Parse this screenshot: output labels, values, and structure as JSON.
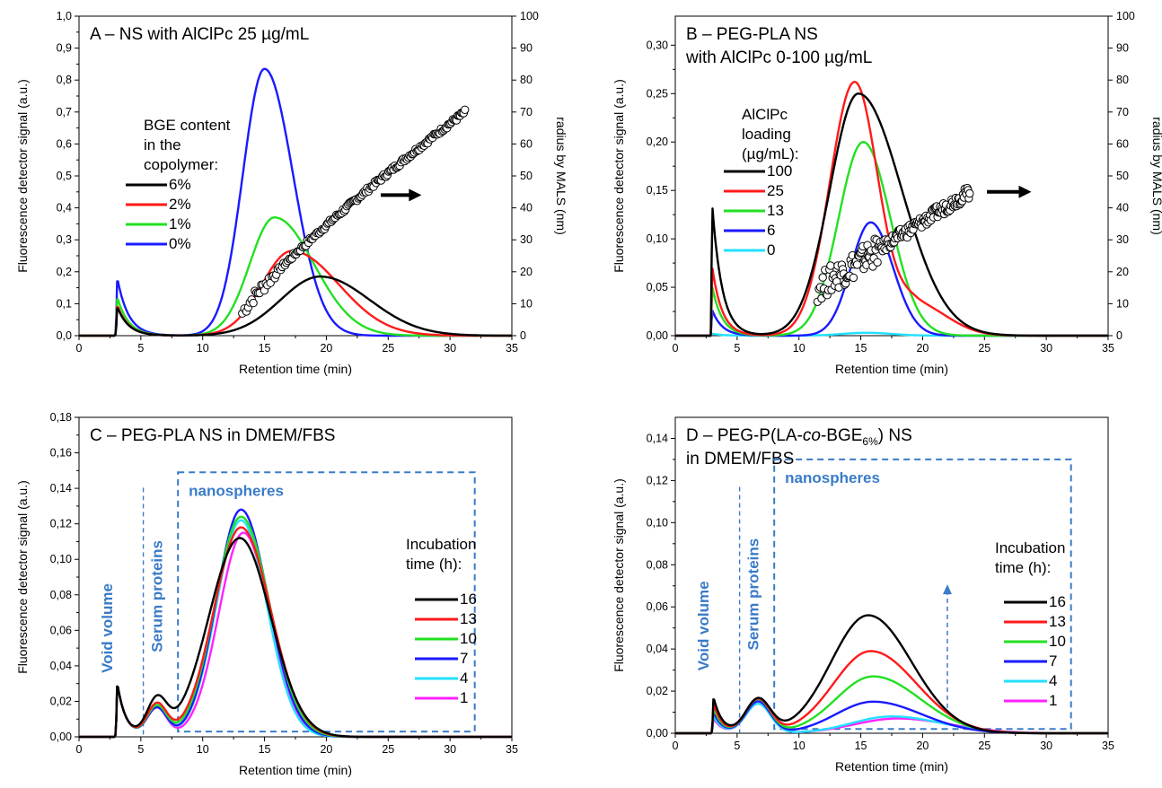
{
  "chart_data": [
    {
      "panel": "A",
      "type": "line",
      "title": "A – NS with AlClPc 25 µg/mL",
      "xlabel": "Retention time (min)",
      "ylabel": "Fluorescence detector signal (a.u.)",
      "y2label": "radius by MALS (nm)",
      "xlim": [
        0,
        35
      ],
      "ylim": [
        0,
        1.0
      ],
      "y2lim": [
        0,
        100
      ],
      "xticks": [
        "0",
        "5",
        "10",
        "15",
        "20",
        "25",
        "30",
        "35"
      ],
      "yticks": [
        "0,0",
        "0,1",
        "0,2",
        "0,3",
        "0,4",
        "0,5",
        "0,6",
        "0,7",
        "0,8",
        "0,9",
        "1,0"
      ],
      "y2ticks": [
        "0",
        "10",
        "20",
        "30",
        "40",
        "50",
        "60",
        "70",
        "80",
        "90",
        "100"
      ],
      "legend_title": [
        "BGE content",
        "in the",
        "copolymer:"
      ],
      "series": [
        {
          "name": "6%",
          "color": "#000000",
          "void": {
            "mu": 3.1,
            "h": 0.09,
            "tau": 0.9
          },
          "peaks": [
            {
              "mu": 19.5,
              "h": 0.185,
              "sl": 3.2,
              "sr": 4.0
            }
          ]
        },
        {
          "name": "2%",
          "color": "#ff1a1a",
          "void": {
            "mu": 3.1,
            "h": 0.095,
            "tau": 0.9
          },
          "peaks": [
            {
              "mu": 17.2,
              "h": 0.265,
              "sl": 2.4,
              "sr": 3.8
            }
          ]
        },
        {
          "name": "1%",
          "color": "#22e022",
          "void": {
            "mu": 3.1,
            "h": 0.12,
            "tau": 0.9
          },
          "peaks": [
            {
              "mu": 15.8,
              "h": 0.37,
              "sl": 2.0,
              "sr": 3.2
            }
          ]
        },
        {
          "name": "0%",
          "color": "#1a1aff",
          "void": {
            "mu": 3.1,
            "h": 0.18,
            "tau": 0.9
          },
          "peaks": [
            {
              "mu": 15.0,
              "h": 0.835,
              "sl": 1.75,
              "sr": 2.3
            }
          ]
        }
      ],
      "mals": {
        "axis": "right",
        "x_start": 13.2,
        "x_end": 31.2,
        "r_start": 7,
        "r_end": 70,
        "note_points": [
          [
            14,
            12
          ],
          [
            17,
            20
          ],
          [
            20,
            30
          ],
          [
            25,
            49
          ],
          [
            29,
            63
          ],
          [
            31,
            70
          ]
        ]
      }
    },
    {
      "panel": "B",
      "type": "line",
      "title": [
        "B – PEG-PLA NS",
        "with AlClPc 0-100 µg/mL"
      ],
      "xlabel": "Retention time (min)",
      "ylabel": "Fluorescence detector signal (a.u.)",
      "y2label": "radius by MALS (nm)",
      "xlim": [
        0,
        35
      ],
      "ylim": [
        0,
        0.33
      ],
      "y2lim": [
        0,
        100
      ],
      "xticks": [
        "0",
        "5",
        "10",
        "15",
        "20",
        "25",
        "30",
        "35"
      ],
      "yticks": [
        "0,00",
        "0,05",
        "0,10",
        "0,15",
        "0,20",
        "0,25",
        "0,30"
      ],
      "y2ticks": [
        "0",
        "10",
        "20",
        "30",
        "40",
        "50",
        "60",
        "70",
        "80",
        "90",
        "100"
      ],
      "legend_title": [
        "AlClPc",
        "loading",
        "(µg/mL):"
      ],
      "series": [
        {
          "name": "100",
          "color": "#000000",
          "void": {
            "mu": 3.0,
            "h": 0.133,
            "tau": 0.8
          },
          "peaks": [
            {
              "mu": 14.8,
              "h": 0.25,
              "sl": 2.3,
              "sr": 3.5
            }
          ]
        },
        {
          "name": "25",
          "color": "#ff1a1a",
          "void": {
            "mu": 3.0,
            "h": 0.07,
            "tau": 0.8
          },
          "peaks": [
            {
              "mu": 14.5,
              "h": 0.262,
              "sl": 2.0,
              "sr": 1.9
            },
            {
              "mu": 19.5,
              "h": 0.032,
              "sl": 1.5,
              "sr": 2.5
            }
          ]
        },
        {
          "name": "13",
          "color": "#22e022",
          "void": {
            "mu": 3.0,
            "h": 0.05,
            "tau": 0.8
          },
          "peaks": [
            {
              "mu": 15.2,
              "h": 0.2,
              "sl": 2.0,
              "sr": 2.2
            }
          ]
        },
        {
          "name": "6",
          "color": "#1a1aff",
          "void": {
            "mu": 3.0,
            "h": 0.026,
            "tau": 0.8
          },
          "peaks": [
            {
              "mu": 15.8,
              "h": 0.117,
              "sl": 1.6,
              "sr": 1.8
            }
          ]
        },
        {
          "name": "0",
          "color": "#22e0ff",
          "void": {
            "mu": 3.0,
            "h": 0.002,
            "tau": 0.8
          },
          "peaks": [
            {
              "mu": 15.5,
              "h": 0.003,
              "sl": 2.0,
              "sr": 2.0
            }
          ]
        }
      ],
      "mals": {
        "axis": "right",
        "x_start": 11.5,
        "x_end": 23.8,
        "r_start": 15,
        "r_end": 45,
        "note_points": [
          [
            12,
            18
          ],
          [
            15,
            25
          ],
          [
            18,
            33
          ],
          [
            20,
            38
          ],
          [
            23,
            46
          ]
        ]
      }
    },
    {
      "panel": "C",
      "type": "line",
      "title": "C – PEG-PLA NS in DMEM/FBS",
      "xlabel": "Retention time (min)",
      "ylabel": "Fluorescence detector signal (a.u.)",
      "xlim": [
        0,
        35
      ],
      "ylim": [
        0,
        0.18
      ],
      "xticks": [
        "0",
        "5",
        "10",
        "15",
        "20",
        "25",
        "30",
        "35"
      ],
      "yticks": [
        "0,00",
        "0,02",
        "0,04",
        "0,06",
        "0,08",
        "0,10",
        "0,12",
        "0,14",
        "0,16",
        "0,18"
      ],
      "legend_title": [
        "Incubation",
        "time (h):"
      ],
      "regions": {
        "void": "Void volume",
        "serum": "Serum proteins",
        "nano": "nanospheres"
      },
      "series": [
        {
          "name": "16",
          "color": "#000000",
          "void": {
            "mu": 3.1,
            "h": 0.03,
            "tau": 0.7
          },
          "serum": {
            "mu": 6.3,
            "h": 0.02,
            "s": 0.8
          },
          "peaks": [
            {
              "mu": 13.0,
              "h": 0.112,
              "sl": 2.5,
              "sr": 2.5
            }
          ]
        },
        {
          "name": "13",
          "color": "#ff1a1a",
          "void": {
            "mu": 3.1,
            "h": 0.03,
            "tau": 0.7
          },
          "serum": {
            "mu": 6.3,
            "h": 0.018,
            "s": 0.8
          },
          "peaks": [
            {
              "mu": 13.1,
              "h": 0.118,
              "sl": 2.2,
              "sr": 2.4
            }
          ]
        },
        {
          "name": "10",
          "color": "#22e022",
          "void": {
            "mu": 3.1,
            "h": 0.03,
            "tau": 0.7
          },
          "serum": {
            "mu": 6.3,
            "h": 0.017,
            "s": 0.8
          },
          "peaks": [
            {
              "mu": 13.1,
              "h": 0.124,
              "sl": 2.1,
              "sr": 2.3
            }
          ]
        },
        {
          "name": "7",
          "color": "#1a1aff",
          "void": {
            "mu": 3.1,
            "h": 0.03,
            "tau": 0.7
          },
          "serum": {
            "mu": 6.3,
            "h": 0.016,
            "s": 0.8
          },
          "peaks": [
            {
              "mu": 13.1,
              "h": 0.128,
              "sl": 2.0,
              "sr": 2.2
            }
          ]
        },
        {
          "name": "4",
          "color": "#22e0ff",
          "void": {
            "mu": 3.1,
            "h": 0.03,
            "tau": 0.7
          },
          "serum": {
            "mu": 6.3,
            "h": 0.016,
            "s": 0.8
          },
          "peaks": [
            {
              "mu": 13.1,
              "h": 0.122,
              "sl": 2.0,
              "sr": 2.1
            }
          ]
        },
        {
          "name": "1",
          "color": "#ff22ff",
          "void": {
            "mu": 3.1,
            "h": 0.03,
            "tau": 0.7
          },
          "serum": {
            "mu": 6.3,
            "h": 0.016,
            "s": 0.8
          },
          "peaks": [
            {
              "mu": 13.3,
              "h": 0.115,
              "sl": 2.0,
              "sr": 2.1
            }
          ]
        }
      ]
    },
    {
      "panel": "D",
      "type": "line",
      "title_parts": {
        "pre": "D – PEG-P(LA-",
        "italic": "co",
        "mid": "-BGE",
        "sub": "6%",
        "post": ") NS"
      },
      "title_line2": "in DMEM/FBS",
      "xlabel": "Retention time (min)",
      "ylabel": "Fluorescence detector signal (a.u.)",
      "xlim": [
        0,
        35
      ],
      "ylim": [
        0,
        0.15
      ],
      "xticks": [
        "0",
        "5",
        "10",
        "15",
        "20",
        "25",
        "30",
        "35"
      ],
      "yticks": [
        "0,00",
        "0,02",
        "0,04",
        "0,06",
        "0,08",
        "0,10",
        "0,12",
        "0,14"
      ],
      "legend_title": [
        "Incubation",
        "time (h):"
      ],
      "regions": {
        "void": "Void volume",
        "serum": "Serum proteins",
        "nano": "nanospheres"
      },
      "series": [
        {
          "name": "16",
          "color": "#000000",
          "void": {
            "mu": 3.1,
            "h": 0.017,
            "tau": 0.7
          },
          "serum": {
            "mu": 6.7,
            "h": 0.016,
            "s": 1.0
          },
          "peaks": [
            {
              "mu": 15.6,
              "h": 0.056,
              "sl": 3.0,
              "sr": 3.5
            }
          ]
        },
        {
          "name": "13",
          "color": "#ff1a1a",
          "void": {
            "mu": 3.1,
            "h": 0.014,
            "tau": 0.7
          },
          "serum": {
            "mu": 6.7,
            "h": 0.016,
            "s": 1.0
          },
          "peaks": [
            {
              "mu": 15.8,
              "h": 0.039,
              "sl": 3.0,
              "sr": 3.7
            }
          ]
        },
        {
          "name": "10",
          "color": "#22e022",
          "void": {
            "mu": 3.1,
            "h": 0.012,
            "tau": 0.7
          },
          "serum": {
            "mu": 6.7,
            "h": 0.016,
            "s": 1.0
          },
          "peaks": [
            {
              "mu": 16.0,
              "h": 0.027,
              "sl": 3.0,
              "sr": 3.8
            }
          ]
        },
        {
          "name": "7",
          "color": "#1a1aff",
          "void": {
            "mu": 3.1,
            "h": 0.01,
            "tau": 0.7
          },
          "serum": {
            "mu": 6.7,
            "h": 0.015,
            "s": 1.0
          },
          "peaks": [
            {
              "mu": 16.0,
              "h": 0.015,
              "sl": 3.0,
              "sr": 3.9
            }
          ]
        },
        {
          "name": "4",
          "color": "#22e0ff",
          "void": {
            "mu": 3.1,
            "h": 0.008,
            "tau": 0.7
          },
          "serum": {
            "mu": 6.7,
            "h": 0.014,
            "s": 1.0
          },
          "peaks": [
            {
              "mu": 17.5,
              "h": 0.008,
              "sl": 3.2,
              "sr": 4.0
            }
          ]
        },
        {
          "name": "1",
          "color": "#ff22ff",
          "void": {
            "mu": 3.1,
            "h": 0.007,
            "tau": 0.7
          },
          "serum": {
            "mu": 6.7,
            "h": 0.014,
            "s": 1.0
          },
          "peaks": [
            {
              "mu": 18.0,
              "h": 0.007,
              "sl": 3.5,
              "sr": 4.2
            }
          ]
        }
      ]
    }
  ]
}
